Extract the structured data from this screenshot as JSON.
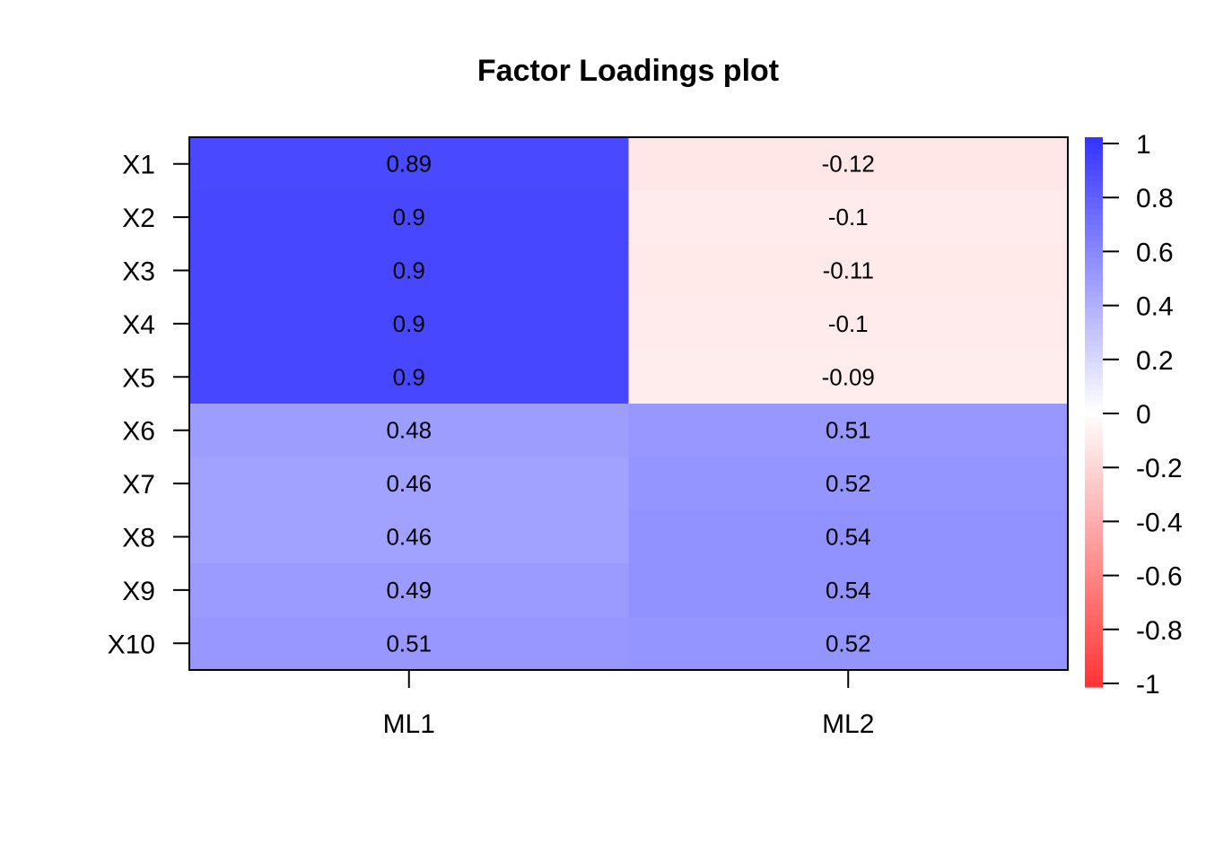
{
  "chart_data": {
    "type": "heatmap",
    "title": "Factor Loadings plot",
    "xlabel": "",
    "ylabel": "",
    "columns": [
      "ML1",
      "ML2"
    ],
    "rows": [
      "X1",
      "X2",
      "X3",
      "X4",
      "X5",
      "X6",
      "X7",
      "X8",
      "X9",
      "X10"
    ],
    "values": [
      [
        0.89,
        -0.12
      ],
      [
        0.9,
        -0.1
      ],
      [
        0.9,
        -0.11
      ],
      [
        0.9,
        -0.1
      ],
      [
        0.9,
        -0.09
      ],
      [
        0.48,
        0.51
      ],
      [
        0.46,
        0.52
      ],
      [
        0.46,
        0.54
      ],
      [
        0.49,
        0.54
      ],
      [
        0.51,
        0.52
      ]
    ],
    "value_labels": [
      [
        "0.89",
        "-0.12"
      ],
      [
        "0.9",
        "-0.1"
      ],
      [
        "0.9",
        "-0.11"
      ],
      [
        "0.9",
        "-0.1"
      ],
      [
        "0.9",
        "-0.09"
      ],
      [
        "0.48",
        "0.51"
      ],
      [
        "0.46",
        "0.52"
      ],
      [
        "0.46",
        "0.54"
      ],
      [
        "0.49",
        "0.54"
      ],
      [
        "0.51",
        "0.52"
      ]
    ],
    "color_scale": {
      "min": -1,
      "max": 1,
      "low_color": "#ff3333",
      "mid_color": "#ffffff",
      "high_color": "#3333ff"
    },
    "legend": {
      "placement": "right",
      "ticks": [
        "1",
        "0.8",
        "0.6",
        "0.4",
        "0.2",
        "0",
        "-0.2",
        "-0.4",
        "-0.6",
        "-0.8",
        "-1"
      ],
      "tick_values": [
        1,
        0.8,
        0.6,
        0.4,
        0.2,
        0,
        -0.2,
        -0.4,
        -0.6,
        -0.8,
        -1
      ]
    },
    "grid": false
  }
}
